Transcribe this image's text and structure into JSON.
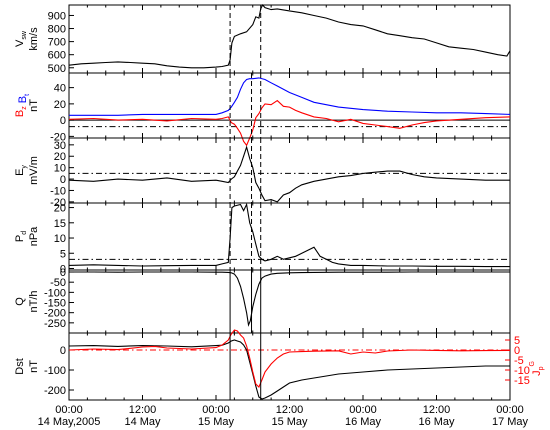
{
  "chart_data": {
    "type": "line",
    "x_unit": "hours from 14 May 2005 00:00 UT",
    "x_range": [
      0,
      72
    ],
    "x_ticks": [
      {
        "x": 0,
        "line1": "00:00",
        "line2": "14 May,2005"
      },
      {
        "x": 12,
        "line1": "12:00",
        "line2": "14 May"
      },
      {
        "x": 24,
        "line1": "00:00",
        "line2": "15 May"
      },
      {
        "x": 36,
        "line1": "12:00",
        "line2": "15 May"
      },
      {
        "x": 48,
        "line1": "00:00",
        "line2": "16 May"
      },
      {
        "x": 60,
        "line1": "12:00",
        "line2": "16 May"
      },
      {
        "x": 72,
        "line1": "00:00",
        "line2": "17 May"
      }
    ],
    "event_lines": [
      {
        "x": 26.3,
        "style": "dashed",
        "panels": [
          0,
          1,
          2,
          3
        ],
        "solid_panels": [
          4,
          5
        ]
      },
      {
        "x": 29.8,
        "style": "dashed",
        "panels": [
          1,
          2,
          3
        ],
        "solid_panels": [
          4
        ]
      },
      {
        "x": 31.3,
        "style": "dashed",
        "panels": [
          0,
          1,
          2,
          3
        ],
        "solid_panels": [
          4,
          5
        ]
      }
    ],
    "panels": [
      {
        "id": "vsw",
        "ylabel": "V",
        "ylabel_sub": "sw",
        "unit": "km/s",
        "ylim": [
          460,
          980
        ],
        "yticks": [
          500,
          600,
          700,
          800,
          900
        ],
        "series": [
          {
            "color": "#000000",
            "style": "solid",
            "x": [
              0,
              2,
              4,
              6,
              8,
              10,
              12,
              14,
              16,
              18,
              20,
              22,
              24,
              25,
              26,
              26.3,
              26.6,
              27,
              28,
              29,
              30,
              30.5,
              31,
              31.3,
              31.6,
              32,
              33,
              34,
              36,
              38,
              40,
              42,
              44,
              46,
              48,
              50,
              52,
              54,
              56,
              58,
              60,
              62,
              64,
              66,
              68,
              70,
              71.5,
              72
            ],
            "y": [
              520,
              530,
              535,
              540,
              545,
              540,
              535,
              530,
              515,
              505,
              500,
              500,
              505,
              510,
              520,
              560,
              690,
              740,
              760,
              775,
              830,
              890,
              880,
              950,
              980,
              960,
              945,
              950,
              935,
              920,
              900,
              880,
              850,
              830,
              820,
              790,
              760,
              745,
              730,
              720,
              690,
              660,
              650,
              640,
              620,
              600,
              590,
              630
            ]
          }
        ]
      },
      {
        "id": "bfield",
        "ylabel_parts": [
          {
            "text": "B",
            "sub": "z",
            "color": "#ff0000"
          },
          {
            "text": "B",
            "sub": "t",
            "color": "#0000ff"
          }
        ],
        "unit": "nT",
        "ylim": [
          -22,
          58
        ],
        "yticks": [
          -20,
          0,
          20,
          40
        ],
        "ref_lines": [
          {
            "y": 0,
            "style": "solid"
          },
          {
            "y": -8,
            "style": "dashdot"
          }
        ],
        "series": [
          {
            "name": "Bt",
            "color": "#0000ff",
            "style": "solid",
            "x": [
              0,
              4,
              8,
              12,
              16,
              20,
              24,
              25,
              26,
              26.5,
              27,
              27.5,
              28,
              28.5,
              29,
              29.5,
              30,
              31,
              32,
              33,
              34,
              36,
              38,
              40,
              44,
              48,
              52,
              56,
              60,
              64,
              68,
              72
            ],
            "y": [
              6,
              6,
              6,
              7,
              7,
              7,
              7,
              9,
              12,
              16,
              22,
              28,
              38,
              46,
              50,
              51,
              51,
              52,
              50,
              46,
              42,
              34,
              28,
              22,
              16,
              13,
              11,
              10,
              9,
              9,
              8,
              7
            ]
          },
          {
            "name": "Bz",
            "color": "#ff0000",
            "style": "solid",
            "x": [
              0,
              4,
              8,
              12,
              16,
              20,
              24,
              25,
              26,
              26.5,
              27,
              27.5,
              28,
              28.5,
              29,
              29.5,
              30,
              30.5,
              31,
              31.5,
              32,
              33,
              34,
              35,
              36,
              37,
              38,
              40,
              42,
              44,
              46,
              48,
              50,
              52,
              54,
              56,
              58,
              60,
              64,
              68,
              72
            ],
            "y": [
              1,
              2,
              0,
              1,
              -1,
              2,
              1,
              2,
              4,
              -3,
              -5,
              -10,
              -16,
              -26,
              -31,
              -22,
              -12,
              3,
              8,
              15,
              20,
              19,
              24,
              17,
              16,
              12,
              9,
              4,
              2,
              -2,
              1,
              -4,
              -6,
              -8,
              -10,
              -6,
              -3,
              -1,
              1,
              3,
              4
            ]
          }
        ]
      },
      {
        "id": "ey",
        "ylabel": "E",
        "ylabel_sub": "y",
        "unit": "mV/m",
        "ylim": [
          -21,
          36
        ],
        "yticks": [
          -20,
          -10,
          0,
          10,
          20,
          30
        ],
        "ref_lines": [
          {
            "y": 5,
            "style": "dashdot"
          }
        ],
        "series": [
          {
            "color": "#000000",
            "style": "solid",
            "x": [
              0,
              4,
              8,
              12,
              16,
              20,
              24,
              25,
              26,
              26.5,
              27,
              27.5,
              28,
              28.5,
              29,
              29.5,
              30,
              30.5,
              31,
              31.5,
              32,
              33,
              34,
              35,
              36,
              37,
              38,
              40,
              42,
              44,
              46,
              48,
              50,
              52,
              54,
              56,
              58,
              60,
              64,
              68,
              72
            ],
            "y": [
              -1,
              -2,
              0,
              -1,
              1,
              -2,
              -1,
              -2,
              -3,
              0,
              2,
              7,
              12,
              20,
              28,
              18,
              10,
              -3,
              -8,
              -14,
              -19,
              -18,
              -20,
              -14,
              -12,
              -8,
              -5,
              -2,
              0,
              2,
              3,
              5,
              6,
              7,
              7,
              4,
              2,
              1,
              0,
              -1,
              -1
            ]
          }
        ]
      },
      {
        "id": "pd",
        "ylabel": "P",
        "ylabel_sub": "d",
        "unit": "nPa",
        "ylim": [
          -0.5,
          21.5
        ],
        "yticks": [
          0,
          5,
          10,
          15,
          20
        ],
        "ref_lines": [
          {
            "y": 3,
            "style": "dashdot"
          }
        ],
        "series": [
          {
            "color": "#000000",
            "style": "solid",
            "x": [
              0,
              4,
              8,
              12,
              16,
              20,
              24,
              25,
              26,
              26.3,
              26.6,
              27,
              28,
              28.5,
              29,
              29.5,
              30,
              30.5,
              31,
              31.5,
              32,
              33,
              34,
              35,
              36,
              37,
              38,
              39,
              40,
              41,
              42,
              43,
              44,
              46,
              48,
              52,
              56,
              60,
              64,
              68,
              72
            ],
            "y": [
              1,
              1.2,
              1,
              0.8,
              0.9,
              1,
              1,
              1.5,
              2,
              10,
              20,
              20.5,
              21,
              19,
              21,
              15,
              12,
              8,
              4,
              3,
              2.5,
              3,
              4,
              3,
              3.5,
              4,
              5,
              6,
              7,
              4,
              3,
              2,
              1.5,
              1,
              1,
              0.8,
              0.8,
              0.7,
              0.7,
              0.6,
              0.6
            ]
          }
        ]
      },
      {
        "id": "q",
        "ylabel": "Q",
        "unit": "nT/h",
        "ylim": [
          -300,
          10
        ],
        "yticks": [
          0,
          -50,
          -100,
          -150,
          -200,
          -250
        ],
        "series": [
          {
            "color": "#000000",
            "style": "solid",
            "x": [
              0,
              4,
              8,
              12,
              16,
              20,
              24,
              25,
              26,
              26.5,
              27,
              27.5,
              28,
              28.5,
              29,
              29.3,
              29.6,
              30,
              30.5,
              31,
              31.5,
              32,
              33,
              34,
              36,
              38,
              40,
              44,
              48,
              52,
              56,
              60,
              64,
              68,
              72
            ],
            "y": [
              0,
              0,
              -1,
              0,
              0,
              0,
              -1,
              -1,
              -2,
              -4,
              -10,
              -30,
              -70,
              -130,
              -200,
              -260,
              -240,
              -170,
              -110,
              -60,
              -30,
              -20,
              -10,
              -6,
              -4,
              -3,
              -2,
              -1,
              -1,
              -1,
              0,
              0,
              0,
              0,
              0
            ]
          }
        ]
      },
      {
        "id": "dst",
        "ylabel": "Dst",
        "unit": "nT",
        "ylim": [
          -250,
          85
        ],
        "yticks": [
          0,
          -100,
          -200
        ],
        "right_axis": {
          "label": "J",
          "label_sub": "p",
          "label_sup": "G",
          "ticks": [
            5,
            0,
            -5,
            -10,
            -15
          ],
          "color": "#ff0000"
        },
        "ref_lines": [
          {
            "y": 0,
            "style": "dashdot",
            "color": "#ff0000"
          }
        ],
        "series": [
          {
            "name": "Dst",
            "color": "#000000",
            "style": "solid",
            "x": [
              0,
              4,
              8,
              12,
              16,
              20,
              24,
              25,
              26,
              26.5,
              27,
              27.5,
              28,
              28.5,
              29,
              29.5,
              30,
              30.5,
              31,
              31.5,
              32,
              33,
              34,
              35,
              36,
              38,
              40,
              42,
              44,
              46,
              48,
              52,
              56,
              60,
              64,
              68,
              72
            ],
            "y": [
              20,
              22,
              18,
              22,
              20,
              16,
              22,
              24,
              35,
              45,
              50,
              45,
              40,
              25,
              0,
              -60,
              -120,
              -180,
              -235,
              -245,
              -240,
              -225,
              -205,
              -185,
              -165,
              -150,
              -140,
              -130,
              -120,
              -115,
              -110,
              -100,
              -95,
              -90,
              -85,
              -80,
              -80
            ]
          },
          {
            "name": "Jp",
            "color": "#ff0000",
            "style": "solid",
            "x": [
              0,
              4,
              8,
              12,
              14,
              16,
              20,
              24,
              25,
              26,
              26.5,
              27,
              27.5,
              28,
              28.5,
              29,
              29.5,
              30,
              30.5,
              31,
              31.5,
              32,
              33,
              34,
              35,
              36,
              38,
              40,
              44,
              46,
              48,
              50,
              52,
              56,
              60,
              64,
              68,
              72
            ],
            "y": [
              0,
              5,
              2,
              15,
              18,
              10,
              5,
              12,
              25,
              50,
              80,
              100,
              95,
              75,
              60,
              20,
              -40,
              -110,
              -170,
              -185,
              -150,
              -110,
              -70,
              -40,
              -20,
              -10,
              -8,
              -6,
              -4,
              -20,
              -10,
              -15,
              -5,
              0,
              -2,
              -4,
              -3,
              -2
            ]
          }
        ]
      }
    ]
  }
}
